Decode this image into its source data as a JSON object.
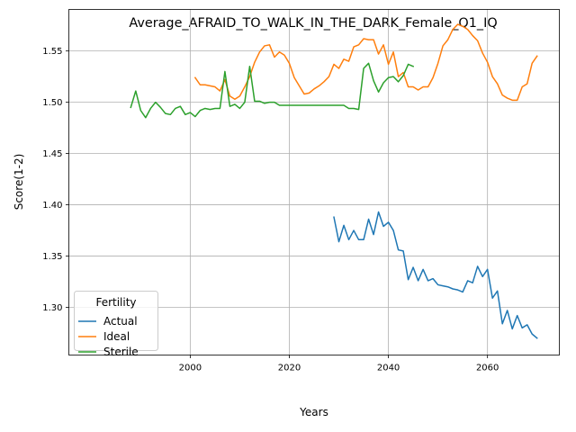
{
  "chart_data": {
    "type": "line",
    "title": "Average_AFRAID_TO_WALK_IN_THE_DARK_Female_Q1_IQ",
    "xlabel": "Years",
    "ylabel": "Score(1-2)",
    "xlim": [
      1975.5,
      2074.5
    ],
    "ylim": [
      1.2535,
      1.5905
    ],
    "x_ticks": [
      2000,
      2020,
      2040,
      2060
    ],
    "y_ticks": [
      1.3,
      1.35,
      1.4,
      1.45,
      1.5,
      1.55
    ],
    "x_tick_labels": [
      "2000",
      "2020",
      "2040",
      "2060"
    ],
    "y_tick_labels": [
      "1.30",
      "1.35",
      "1.40",
      "1.45",
      "1.50",
      "1.55"
    ],
    "grid": true,
    "legend": {
      "title": "Fertility",
      "position": "lower-left"
    },
    "series": [
      {
        "name": "Actual",
        "color": "#1f77b4",
        "x": [
          2029,
          2030,
          2031,
          2032,
          2033,
          2034,
          2035,
          2036,
          2037,
          2038,
          2039,
          2040,
          2041,
          2042,
          2043,
          2044,
          2045,
          2046,
          2047,
          2048,
          2049,
          2050,
          2051,
          2052,
          2053,
          2054,
          2055,
          2056,
          2057,
          2058,
          2059,
          2060,
          2061,
          2062,
          2063,
          2064,
          2065,
          2066,
          2067,
          2068,
          2069,
          2070
        ],
        "y": [
          1.388,
          1.364,
          1.38,
          1.366,
          1.375,
          1.366,
          1.366,
          1.386,
          1.371,
          1.393,
          1.379,
          1.383,
          1.375,
          1.356,
          1.355,
          1.327,
          1.339,
          1.326,
          1.337,
          1.326,
          1.328,
          1.322,
          1.321,
          1.32,
          1.318,
          1.317,
          1.315,
          1.326,
          1.324,
          1.34,
          1.33,
          1.337,
          1.309,
          1.316,
          1.284,
          1.297,
          1.279,
          1.292,
          1.28,
          1.283,
          1.274,
          1.27
        ]
      },
      {
        "name": "Ideal",
        "color": "#ff7f0e",
        "x": [
          2001,
          2002,
          2003,
          2004,
          2005,
          2006,
          2007,
          2008,
          2009,
          2010,
          2011,
          2012,
          2013,
          2014,
          2015,
          2016,
          2017,
          2018,
          2019,
          2020,
          2021,
          2022,
          2023,
          2024,
          2025,
          2026,
          2027,
          2028,
          2029,
          2030,
          2031,
          2032,
          2033,
          2034,
          2035,
          2036,
          2037,
          2038,
          2039,
          2040,
          2041,
          2042,
          2043,
          2044,
          2045,
          2046,
          2047,
          2048,
          2049,
          2050,
          2051,
          2052,
          2053,
          2054,
          2055,
          2056,
          2057,
          2058,
          2059,
          2060,
          2061,
          2062,
          2063,
          2064,
          2065,
          2066,
          2067,
          2068,
          2069,
          2070
        ],
        "y": [
          1.524,
          1.517,
          1.517,
          1.516,
          1.515,
          1.511,
          1.522,
          1.506,
          1.503,
          1.506,
          1.515,
          1.525,
          1.539,
          1.549,
          1.555,
          1.556,
          1.544,
          1.549,
          1.546,
          1.538,
          1.524,
          1.516,
          1.508,
          1.509,
          1.513,
          1.516,
          1.52,
          1.525,
          1.537,
          1.533,
          1.542,
          1.54,
          1.554,
          1.556,
          1.562,
          1.561,
          1.561,
          1.547,
          1.556,
          1.537,
          1.549,
          1.525,
          1.529,
          1.515,
          1.515,
          1.512,
          1.515,
          1.515,
          1.524,
          1.538,
          1.555,
          1.561,
          1.571,
          1.576,
          1.574,
          1.571,
          1.565,
          1.56,
          1.548,
          1.539,
          1.525,
          1.518,
          1.507,
          1.504,
          1.502,
          1.502,
          1.515,
          1.518,
          1.538,
          1.545
        ]
      },
      {
        "name": "Sterile",
        "color": "#2ca02c",
        "x": [
          1988,
          1989,
          1990,
          1991,
          1992,
          1993,
          1994,
          1995,
          1996,
          1997,
          1998,
          1999,
          2000,
          2001,
          2002,
          2003,
          2004,
          2005,
          2006,
          2007,
          2008,
          2009,
          2010,
          2011,
          2012,
          2013,
          2014,
          2015,
          2016,
          2017,
          2018,
          2019,
          2020,
          2021,
          2022,
          2023,
          2024,
          2025,
          2026,
          2027,
          2028,
          2029,
          2030,
          2031,
          2032,
          2033,
          2034,
          2035,
          2036,
          2037,
          2038,
          2039,
          2040,
          2041,
          2042,
          2043,
          2044,
          2045
        ],
        "y": [
          1.495,
          1.511,
          1.492,
          1.485,
          1.494,
          1.5,
          1.495,
          1.489,
          1.488,
          1.494,
          1.496,
          1.488,
          1.49,
          1.486,
          1.492,
          1.494,
          1.493,
          1.494,
          1.494,
          1.53,
          1.496,
          1.498,
          1.494,
          1.5,
          1.535,
          1.501,
          1.501,
          1.499,
          1.5,
          1.5,
          1.497,
          1.497,
          1.497,
          1.497,
          1.497,
          1.497,
          1.497,
          1.497,
          1.497,
          1.497,
          1.497,
          1.497,
          1.497,
          1.497,
          1.494,
          1.494,
          1.493,
          1.533,
          1.538,
          1.521,
          1.51,
          1.519,
          1.524,
          1.525,
          1.52,
          1.526,
          1.537,
          1.535
        ]
      }
    ]
  }
}
